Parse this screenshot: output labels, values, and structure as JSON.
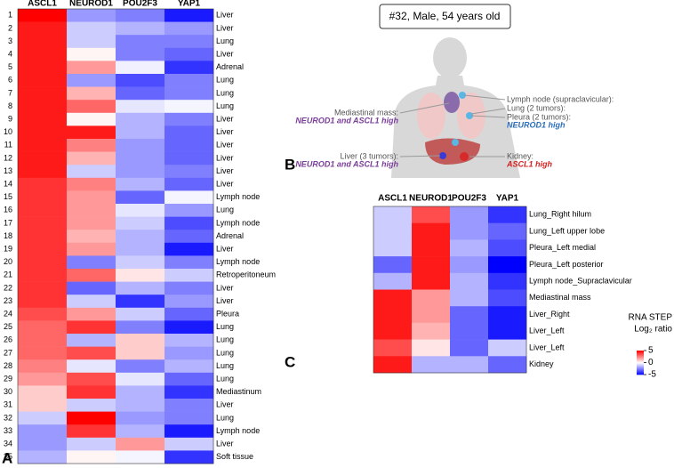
{
  "chart_data": [
    {
      "type": "heatmap",
      "columns": [
        "ASCL1",
        "NEUROD1",
        "POU2F3",
        "YAP1"
      ],
      "row_numbers": [
        1,
        2,
        3,
        4,
        5,
        6,
        7,
        8,
        9,
        10,
        11,
        12,
        13,
        14,
        15,
        16,
        17,
        18,
        19,
        20,
        21,
        22,
        23,
        24,
        25,
        26,
        27,
        28,
        29,
        30,
        31,
        32,
        33,
        34,
        35
      ],
      "row_labels": [
        "Liver",
        "Liver",
        "Lung",
        "Liver",
        "Adrenal",
        "Lung",
        "Lung",
        "Lung",
        "Liver",
        "Liver",
        "Liver",
        "Liver",
        "Liver",
        "Liver",
        "Lymph node",
        "Lung",
        "Lymph node",
        "Adrenal",
        "Liver",
        "Lymph node",
        "Retroperitoneum",
        "Liver",
        "Liver",
        "Pleura",
        "Lung",
        "Lung",
        "Lung",
        "Lung",
        "Lung",
        "Mediastinum",
        "Liver",
        "Lung",
        "Lymph node",
        "Liver",
        "Soft tissue"
      ],
      "values": [
        [
          5,
          -2,
          -2.5,
          -4.5
        ],
        [
          4.5,
          -1,
          -1.5,
          -2
        ],
        [
          4.5,
          -1,
          -2.5,
          -2.5
        ],
        [
          4.5,
          0.2,
          -2.5,
          -3
        ],
        [
          4.5,
          2,
          -0.3,
          -4
        ],
        [
          4.5,
          -2,
          -3.5,
          -2.5
        ],
        [
          4.5,
          1.5,
          -3,
          -2.5
        ],
        [
          4.5,
          3,
          -0.5,
          -0.2
        ],
        [
          4.5,
          0.2,
          -1.5,
          -2.5
        ],
        [
          4.5,
          4.5,
          -1.5,
          -3
        ],
        [
          4.5,
          2.5,
          -2,
          -3
        ],
        [
          4.5,
          1.5,
          -2,
          -3
        ],
        [
          4.5,
          -1,
          -2,
          -2.5
        ],
        [
          4,
          2.5,
          -1.5,
          -3
        ],
        [
          4,
          2,
          -3,
          -0.2
        ],
        [
          4,
          2,
          -0.5,
          -2
        ],
        [
          4,
          2,
          -1,
          -3.5
        ],
        [
          4,
          1.5,
          -1.5,
          -3
        ],
        [
          4,
          2,
          -1.5,
          -4.5
        ],
        [
          4,
          -2.5,
          -1,
          -2.5
        ],
        [
          4,
          3,
          0.5,
          -1
        ],
        [
          4,
          -3,
          -1.5,
          -2.5
        ],
        [
          4,
          -1,
          -4,
          -2
        ],
        [
          3.5,
          2,
          -1,
          -3
        ],
        [
          3,
          4,
          -2.5,
          -4.5
        ],
        [
          3,
          -1.5,
          1,
          -1.5
        ],
        [
          3,
          3.5,
          1,
          -2
        ],
        [
          2.5,
          -0.5,
          -2.5,
          -1.5
        ],
        [
          2,
          3.5,
          -0.5,
          -3
        ],
        [
          1,
          4,
          -1.5,
          -4
        ],
        [
          1,
          -1,
          -1.5,
          -2.5
        ],
        [
          -1,
          5,
          -2,
          -2.5
        ],
        [
          -2,
          4,
          -1.5,
          -4.5
        ],
        [
          -2,
          -1,
          2,
          -1
        ],
        [
          -1.5,
          0.2,
          -0.2,
          -4
        ]
      ],
      "zlim": [
        -5,
        5
      ],
      "colors": [
        "#0000ff",
        "#ffffff",
        "#ff0000"
      ]
    },
    {
      "type": "heatmap",
      "columns": [
        "ASCL1",
        "NEUROD1",
        "POU2F3",
        "YAP1"
      ],
      "row_labels": [
        "Lung_Right hilum",
        "Lung_Left upper lobe",
        "Pleura_Left medial",
        "Pleura_Left posterior",
        "Lymph node_Supraclavicular",
        "Mediastinal mass",
        "Liver_Right",
        "Liver_Left",
        "Liver_Left",
        "Kidney"
      ],
      "values": [
        [
          -1,
          3.5,
          -2,
          -4
        ],
        [
          -1,
          4.5,
          -2,
          -3
        ],
        [
          -1,
          4.5,
          -1.5,
          -3.5
        ],
        [
          -3,
          4.5,
          -2,
          -5
        ],
        [
          -1.5,
          4.5,
          -1.5,
          -4
        ],
        [
          4.5,
          2,
          -1.5,
          -3.5
        ],
        [
          4.5,
          2,
          -3,
          -4.5
        ],
        [
          4.5,
          1.5,
          -3,
          -4.5
        ],
        [
          3.5,
          0.5,
          -3,
          -1
        ],
        [
          4.5,
          -1.5,
          -1.5,
          -3
        ]
      ],
      "zlim": [
        -5,
        5
      ],
      "colors": [
        "#0000ff",
        "#ffffff",
        "#ff0000"
      ],
      "colorbar": {
        "title": [
          "RNA STEP",
          "Log₂ ratio"
        ],
        "ticks": [
          5,
          0,
          -5
        ]
      }
    }
  ],
  "panel_labels": [
    "A",
    "B",
    "C"
  ],
  "illustration": {
    "caption": "#32, Male, 54 years old",
    "mediastinal": {
      "site": "Mediastinal mass:",
      "note": "NEUROD1 and ASCL1 high"
    },
    "liver": {
      "site": "Liver (3 tumors):",
      "note": "NEUROD1 and ASCL1 high"
    },
    "chest": {
      "sites": [
        "Lymph node (supraclavicular):",
        "Lung (2 tumors):",
        "Pleura (2 tumors):"
      ],
      "note": "NEUROD1 high"
    },
    "kidney": {
      "site": "Kidney:",
      "note": "ASCL1 high"
    }
  }
}
